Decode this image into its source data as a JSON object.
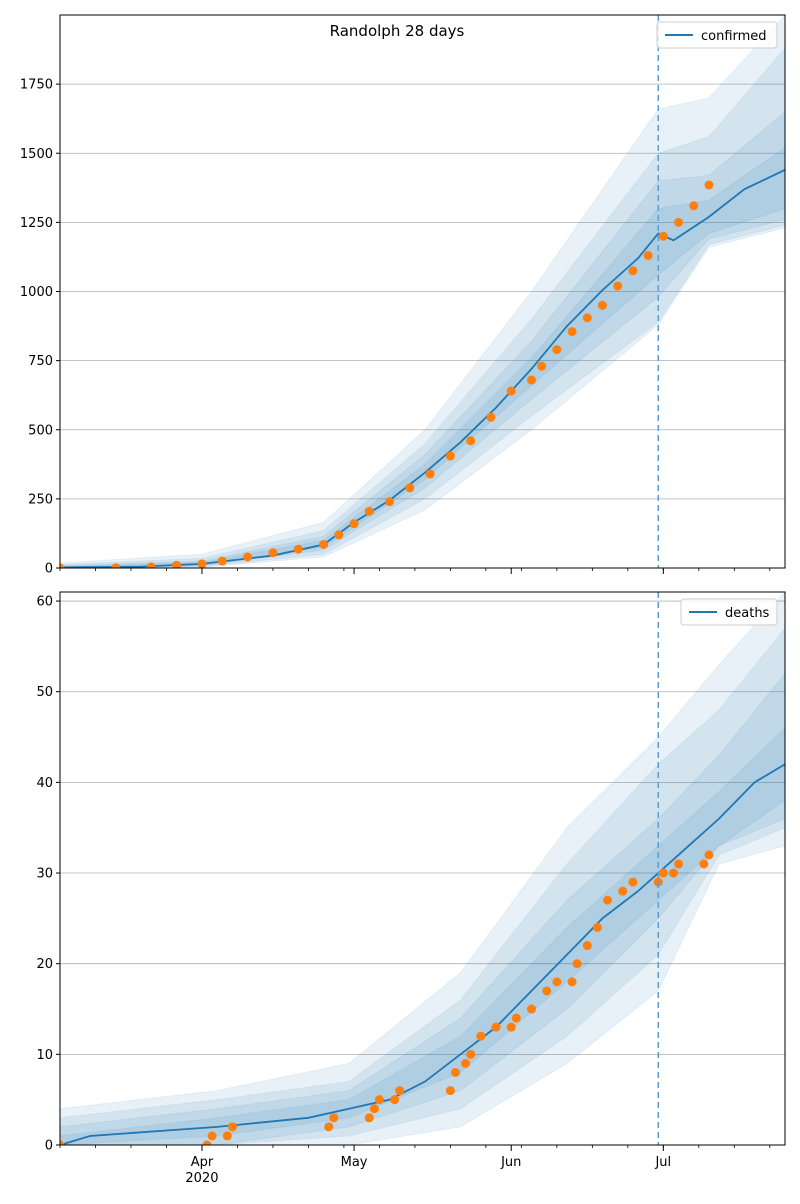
{
  "title": "Randolph 28 days",
  "colors": {
    "model": "#1f77b4",
    "observed": "#ff7f0e",
    "band": "#1f77b4",
    "grid": "#b0b0b0",
    "cutoff": "#5a9fd4"
  },
  "chart_data": [
    {
      "type": "line",
      "series_name": "confirmed",
      "legend": "top-right",
      "grid": "horizontal",
      "x_start": "2020-03-04",
      "x_end": "2020-07-25",
      "cutoff_date": "2020-06-30",
      "ylim": [
        0,
        2000
      ],
      "yticks": [
        0,
        250,
        500,
        750,
        1000,
        1250,
        1500,
        1750
      ],
      "x_month_ticks": [
        {
          "date": "2020-04-01",
          "label": "Apr",
          "sublabel": "2020"
        },
        {
          "date": "2020-05-01",
          "label": "May",
          "sublabel": ""
        },
        {
          "date": "2020-06-01",
          "label": "Jun",
          "sublabel": ""
        },
        {
          "date": "2020-07-01",
          "label": "Jul",
          "sublabel": ""
        }
      ],
      "model_points": [
        [
          "2020-03-04",
          2
        ],
        [
          "2020-03-20",
          5
        ],
        [
          "2020-04-01",
          15
        ],
        [
          "2020-04-15",
          45
        ],
        [
          "2020-04-25",
          85
        ],
        [
          "2020-05-01",
          165
        ],
        [
          "2020-05-08",
          245
        ],
        [
          "2020-05-15",
          345
        ],
        [
          "2020-05-22",
          455
        ],
        [
          "2020-05-29",
          580
        ],
        [
          "2020-06-05",
          720
        ],
        [
          "2020-06-12",
          875
        ],
        [
          "2020-06-19",
          1005
        ],
        [
          "2020-06-26",
          1120
        ],
        [
          "2020-06-30",
          1210
        ],
        [
          "2020-07-03",
          1185
        ],
        [
          "2020-07-10",
          1270
        ],
        [
          "2020-07-17",
          1370
        ],
        [
          "2020-07-25",
          1440
        ]
      ],
      "band_inner": [
        [
          "2020-03-04",
          0,
          5
        ],
        [
          "2020-04-01",
          10,
          20
        ],
        [
          "2020-04-25",
          75,
          100
        ],
        [
          "2020-05-15",
          320,
          375
        ],
        [
          "2020-06-05",
          660,
          760
        ],
        [
          "2020-06-30",
          1060,
          1300
        ],
        [
          "2020-07-10",
          1210,
          1330
        ],
        [
          "2020-07-25",
          1300,
          1520
        ]
      ],
      "band_mid": [
        [
          "2020-03-04",
          0,
          8
        ],
        [
          "2020-04-01",
          8,
          25
        ],
        [
          "2020-04-25",
          65,
          115
        ],
        [
          "2020-05-15",
          290,
          410
        ],
        [
          "2020-06-05",
          610,
          820
        ],
        [
          "2020-06-30",
          980,
          1400
        ],
        [
          "2020-07-10",
          1190,
          1420
        ],
        [
          "2020-07-25",
          1260,
          1650
        ]
      ],
      "band_outer": [
        [
          "2020-03-04",
          0,
          12
        ],
        [
          "2020-04-01",
          5,
          35
        ],
        [
          "2020-04-25",
          50,
          135
        ],
        [
          "2020-05-15",
          250,
          450
        ],
        [
          "2020-06-05",
          550,
          900
        ],
        [
          "2020-06-30",
          890,
          1500
        ],
        [
          "2020-07-10",
          1170,
          1560
        ],
        [
          "2020-07-25",
          1240,
          1880
        ]
      ],
      "band_extreme": [
        [
          "2020-03-04",
          0,
          18
        ],
        [
          "2020-04-01",
          3,
          50
        ],
        [
          "2020-04-25",
          40,
          165
        ],
        [
          "2020-05-15",
          210,
          500
        ],
        [
          "2020-06-05",
          500,
          1000
        ],
        [
          "2020-06-30",
          880,
          1660
        ],
        [
          "2020-07-10",
          1160,
          1700
        ],
        [
          "2020-07-25",
          1230,
          2000
        ]
      ],
      "observed": [
        [
          "2020-03-04",
          0
        ],
        [
          "2020-03-15",
          1
        ],
        [
          "2020-03-22",
          4
        ],
        [
          "2020-03-27",
          10
        ],
        [
          "2020-04-01",
          15
        ],
        [
          "2020-04-05",
          25
        ],
        [
          "2020-04-10",
          40
        ],
        [
          "2020-04-15",
          55
        ],
        [
          "2020-04-20",
          68
        ],
        [
          "2020-04-25",
          85
        ],
        [
          "2020-04-28",
          120
        ],
        [
          "2020-05-01",
          160
        ],
        [
          "2020-05-04",
          205
        ],
        [
          "2020-05-08",
          240
        ],
        [
          "2020-05-12",
          290
        ],
        [
          "2020-05-16",
          340
        ],
        [
          "2020-05-20",
          405
        ],
        [
          "2020-05-24",
          460
        ],
        [
          "2020-05-28",
          545
        ],
        [
          "2020-06-01",
          640
        ],
        [
          "2020-06-05",
          680
        ],
        [
          "2020-06-07",
          730
        ],
        [
          "2020-06-10",
          790
        ],
        [
          "2020-06-13",
          855
        ],
        [
          "2020-06-16",
          905
        ],
        [
          "2020-06-19",
          950
        ],
        [
          "2020-06-22",
          1020
        ],
        [
          "2020-06-25",
          1075
        ],
        [
          "2020-06-28",
          1130
        ],
        [
          "2020-07-01",
          1200
        ],
        [
          "2020-07-04",
          1250
        ],
        [
          "2020-07-07",
          1310
        ],
        [
          "2020-07-10",
          1385
        ]
      ]
    },
    {
      "type": "line",
      "series_name": "deaths",
      "legend": "top-right",
      "grid": "horizontal",
      "x_start": "2020-03-04",
      "x_end": "2020-07-25",
      "cutoff_date": "2020-06-30",
      "ylim": [
        0,
        61
      ],
      "yticks": [
        0,
        10,
        20,
        30,
        40,
        50,
        60
      ],
      "x_month_ticks": [
        {
          "date": "2020-04-01",
          "label": "Apr",
          "sublabel": "2020"
        },
        {
          "date": "2020-05-01",
          "label": "May",
          "sublabel": ""
        },
        {
          "date": "2020-06-01",
          "label": "Jun",
          "sublabel": ""
        },
        {
          "date": "2020-07-01",
          "label": "Jul",
          "sublabel": ""
        }
      ],
      "model_points": [
        [
          "2020-03-04",
          0
        ],
        [
          "2020-03-10",
          1
        ],
        [
          "2020-04-04",
          2
        ],
        [
          "2020-04-22",
          3
        ],
        [
          "2020-04-30",
          4
        ],
        [
          "2020-05-08",
          5
        ],
        [
          "2020-05-15",
          7
        ],
        [
          "2020-05-22",
          10
        ],
        [
          "2020-05-29",
          13
        ],
        [
          "2020-06-05",
          17
        ],
        [
          "2020-06-12",
          21
        ],
        [
          "2020-06-19",
          25
        ],
        [
          "2020-06-26",
          28
        ],
        [
          "2020-06-30",
          30
        ],
        [
          "2020-07-06",
          33
        ],
        [
          "2020-07-12",
          36
        ],
        [
          "2020-07-19",
          40
        ],
        [
          "2020-07-25",
          42
        ]
      ],
      "band_inner": [
        [
          "2020-03-04",
          0,
          1
        ],
        [
          "2020-04-04",
          1,
          3
        ],
        [
          "2020-04-30",
          3,
          5
        ],
        [
          "2020-05-22",
          8,
          12
        ],
        [
          "2020-06-12",
          18,
          24
        ],
        [
          "2020-06-30",
          27,
          33
        ],
        [
          "2020-07-12",
          33,
          39
        ],
        [
          "2020-07-25",
          38,
          46
        ]
      ],
      "band_mid": [
        [
          "2020-03-04",
          0,
          2
        ],
        [
          "2020-04-04",
          0,
          4
        ],
        [
          "2020-04-30",
          2,
          6
        ],
        [
          "2020-05-22",
          6,
          14
        ],
        [
          "2020-06-12",
          15,
          27
        ],
        [
          "2020-06-30",
          25,
          36
        ],
        [
          "2020-07-12",
          33,
          43
        ],
        [
          "2020-07-25",
          36,
          52
        ]
      ],
      "band_outer": [
        [
          "2020-03-04",
          0,
          3
        ],
        [
          "2020-04-04",
          0,
          5
        ],
        [
          "2020-04-30",
          1,
          7
        ],
        [
          "2020-05-22",
          4,
          16
        ],
        [
          "2020-06-12",
          12,
          31
        ],
        [
          "2020-06-30",
          21,
          42
        ],
        [
          "2020-07-12",
          32,
          48
        ],
        [
          "2020-07-25",
          35,
          57
        ]
      ],
      "band_extreme": [
        [
          "2020-03-04",
          0,
          4
        ],
        [
          "2020-04-04",
          0,
          6
        ],
        [
          "2020-04-30",
          0,
          9
        ],
        [
          "2020-05-22",
          2,
          19
        ],
        [
          "2020-06-12",
          9,
          35
        ],
        [
          "2020-06-30",
          17,
          45
        ],
        [
          "2020-07-12",
          31,
          53
        ],
        [
          "2020-07-25",
          33,
          61
        ]
      ],
      "observed": [
        [
          "2020-03-04",
          0
        ],
        [
          "2020-04-02",
          0
        ],
        [
          "2020-04-03",
          1
        ],
        [
          "2020-04-06",
          1
        ],
        [
          "2020-04-07",
          2
        ],
        [
          "2020-04-26",
          2
        ],
        [
          "2020-04-27",
          3
        ],
        [
          "2020-05-04",
          3
        ],
        [
          "2020-05-05",
          4
        ],
        [
          "2020-05-06",
          5
        ],
        [
          "2020-05-09",
          5
        ],
        [
          "2020-05-10",
          6
        ],
        [
          "2020-05-20",
          6
        ],
        [
          "2020-05-21",
          8
        ],
        [
          "2020-05-23",
          9
        ],
        [
          "2020-05-24",
          10
        ],
        [
          "2020-05-26",
          12
        ],
        [
          "2020-05-29",
          13
        ],
        [
          "2020-06-01",
          13
        ],
        [
          "2020-06-02",
          14
        ],
        [
          "2020-06-05",
          15
        ],
        [
          "2020-06-08",
          17
        ],
        [
          "2020-06-10",
          18
        ],
        [
          "2020-06-13",
          18
        ],
        [
          "2020-06-14",
          20
        ],
        [
          "2020-06-16",
          22
        ],
        [
          "2020-06-18",
          24
        ],
        [
          "2020-06-20",
          27
        ],
        [
          "2020-06-23",
          28
        ],
        [
          "2020-06-25",
          29
        ],
        [
          "2020-06-30",
          29
        ],
        [
          "2020-07-01",
          30
        ],
        [
          "2020-07-03",
          30
        ],
        [
          "2020-07-04",
          31
        ],
        [
          "2020-07-09",
          31
        ],
        [
          "2020-07-10",
          32
        ]
      ]
    }
  ]
}
